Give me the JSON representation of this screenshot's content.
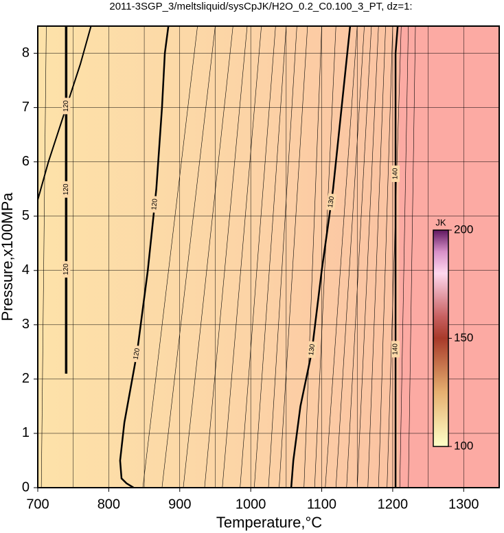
{
  "chart_data": {
    "type": "contour",
    "title": "2011-3SGP_3/meltsliquid/sysCpJK/H2O_0.2_C0.100_3_PT, dz=1:",
    "xlabel": "Temperature,°C",
    "ylabel": "Pressure,x100MPa",
    "xlim": [
      700,
      1350
    ],
    "ylim": [
      0,
      8.5
    ],
    "xticks": [
      700,
      800,
      900,
      1000,
      1100,
      1200,
      1300
    ],
    "x_minor_grid": [
      750,
      850,
      950,
      1050,
      1150,
      1250
    ],
    "yticks": [
      0,
      1,
      2,
      3,
      4,
      5,
      6,
      7,
      8
    ],
    "grid": true,
    "contours": [
      {
        "level": 120,
        "label": "120",
        "x": [
          740,
          740
        ],
        "y": [
          2.1,
          8.5
        ]
      },
      {
        "level": 120,
        "label": "120",
        "x": [
          835,
          825,
          818,
          816,
          822,
          840,
          855,
          867,
          875,
          879,
          884
        ],
        "y": [
          0,
          0.08,
          0.17,
          0.5,
          1.2,
          2.5,
          4,
          5.5,
          7,
          8,
          8.5
        ]
      },
      {
        "level": 130,
        "label": "130",
        "x": [
          1057,
          1060,
          1070,
          1086,
          1100,
          1116,
          1128,
          1140
        ],
        "y": [
          0,
          0.5,
          1.5,
          2.5,
          4,
          5.5,
          7,
          8.5
        ]
      },
      {
        "level": 140,
        "label": "140",
        "x": [
          1204,
          1204,
          1207
        ],
        "y": [
          0,
          8,
          8.5
        ]
      }
    ],
    "boundary": {
      "x": [
        700,
        715,
        740,
        760,
        775
      ],
      "y": [
        5.3,
        6,
        7,
        7.8,
        8.5
      ]
    },
    "minor_contours": [
      [
        705,
        712
      ],
      [
        848,
        925
      ],
      [
        875,
        950
      ],
      [
        905,
        975
      ],
      [
        935,
        995
      ],
      [
        960,
        1015
      ],
      [
        985,
        1035
      ],
      [
        1005,
        1050
      ],
      [
        1025,
        1065
      ],
      [
        1040,
        1080
      ],
      [
        1075,
        1100
      ],
      [
        1090,
        1120
      ],
      [
        1105,
        1150
      ],
      [
        1120,
        1160
      ],
      [
        1135,
        1170
      ],
      [
        1150,
        1180
      ],
      [
        1165,
        1190
      ],
      [
        1180,
        1200
      ],
      [
        1192,
        1212
      ],
      [
        1210,
        1222
      ],
      [
        1222,
        1232
      ]
    ],
    "colorbar": {
      "label": "JK",
      "lim": [
        100,
        200
      ],
      "ticks": [
        100,
        150,
        200
      ]
    }
  }
}
